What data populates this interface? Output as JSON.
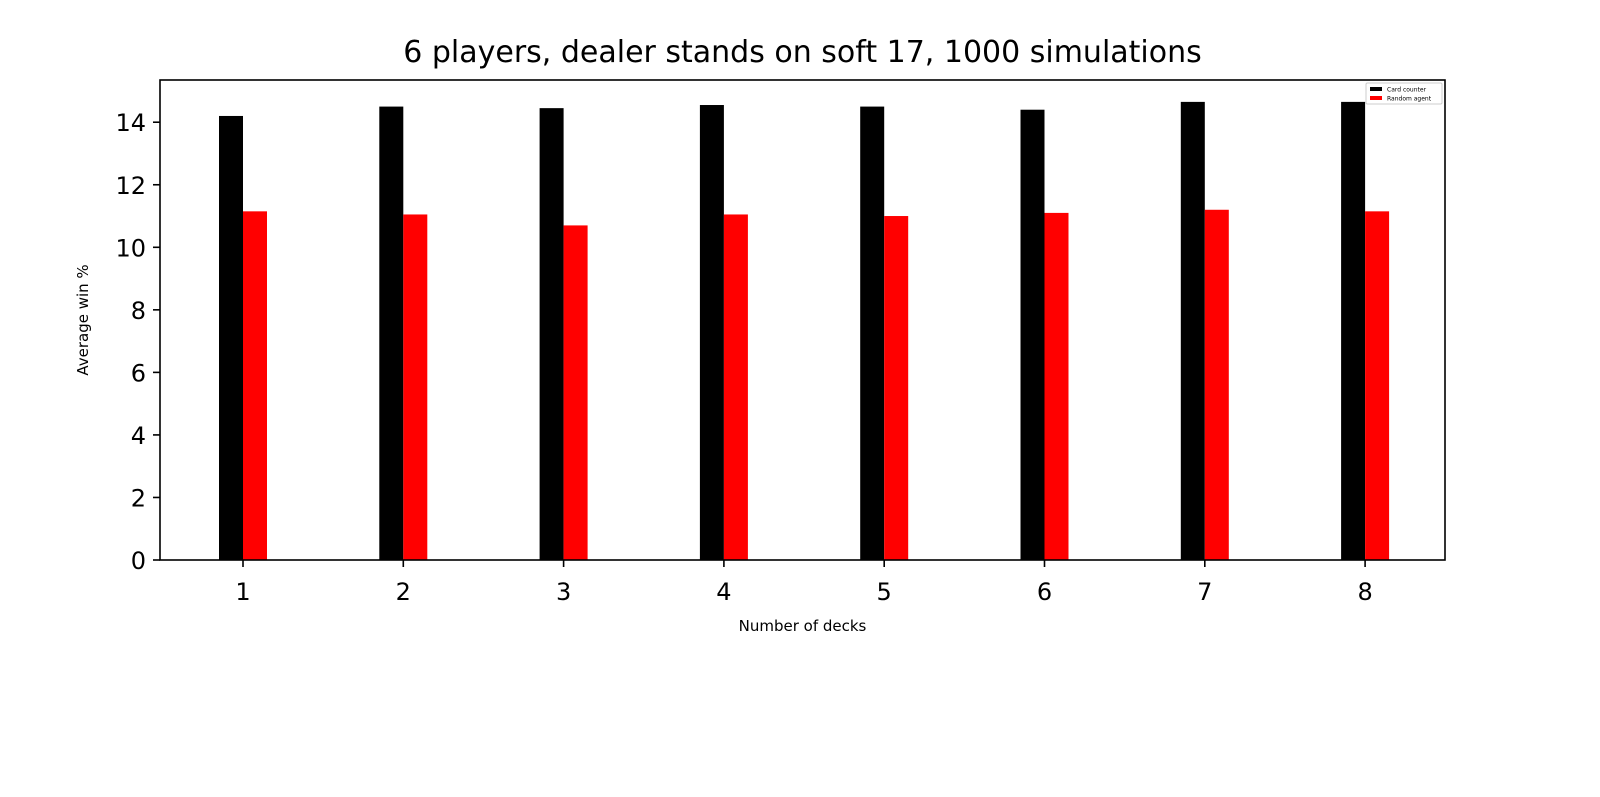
{
  "chart_data": {
    "type": "bar",
    "title": "6 players, dealer stands on soft 17, 1000 simulations",
    "xlabel": "Number of decks",
    "ylabel": "Average win %",
    "categories": [
      "1",
      "2",
      "3",
      "4",
      "5",
      "6",
      "7",
      "8"
    ],
    "series": [
      {
        "name": "Card counter",
        "color": "#000000",
        "values": [
          14.2,
          14.5,
          14.45,
          14.55,
          14.5,
          14.4,
          14.65,
          14.65
        ]
      },
      {
        "name": "Random agent",
        "color": "#ff0000",
        "values": [
          11.15,
          11.05,
          10.7,
          11.05,
          11.0,
          11.1,
          11.2,
          11.15
        ]
      }
    ],
    "ylim": [
      0,
      15.35
    ],
    "yticks": [
      "0",
      "2",
      "4",
      "6",
      "8",
      "10",
      "12",
      "14"
    ],
    "grid": false,
    "legend_position": "top-right"
  }
}
